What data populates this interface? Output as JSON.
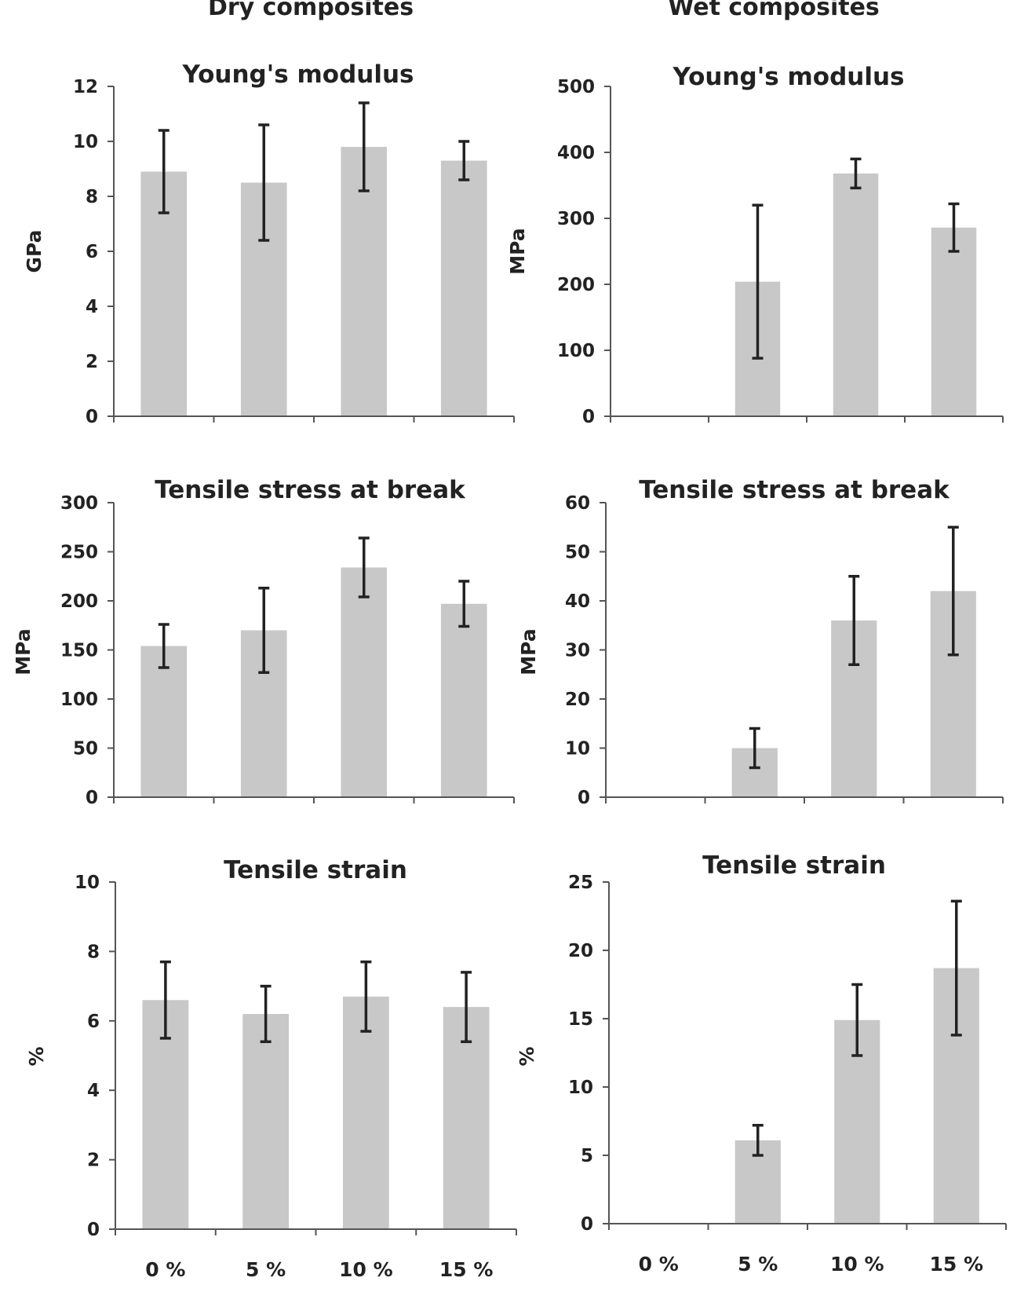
{
  "columns": {
    "dry_title": "Dry composites",
    "wet_title": "Wet composites"
  },
  "chart_data": [
    {
      "type": "bar",
      "title": "Young's modulus",
      "ylabel": "GPa",
      "categories": [
        "0 %",
        "5 %",
        "10 %",
        "15 %"
      ],
      "values": [
        8.9,
        8.5,
        9.8,
        9.3
      ],
      "errors": [
        1.5,
        2.1,
        1.6,
        0.7
      ],
      "ylim": [
        0,
        12
      ],
      "yticks": [
        0,
        2,
        4,
        6,
        8,
        10,
        12
      ],
      "show_category_labels": false,
      "bar_color": "#c8c8c8",
      "error_color": "#222222"
    },
    {
      "type": "bar",
      "title": "Young's modulus",
      "ylabel": "MPa",
      "categories": [
        "0 %",
        "5 %",
        "10 %",
        "15 %"
      ],
      "values": [
        0,
        204,
        368,
        286
      ],
      "errors": [
        0,
        116,
        22,
        36
      ],
      "ylim": [
        0,
        500
      ],
      "yticks": [
        0,
        100,
        200,
        300,
        400,
        500
      ],
      "show_category_labels": false,
      "bar_color": "#c8c8c8",
      "error_color": "#222222"
    },
    {
      "type": "bar",
      "title": "Tensile stress at break",
      "ylabel": "MPa",
      "categories": [
        "0 %",
        "5 %",
        "10 %",
        "15 %"
      ],
      "values": [
        154,
        170,
        234,
        197
      ],
      "errors": [
        22,
        43,
        30,
        23
      ],
      "ylim": [
        0,
        300
      ],
      "yticks": [
        0,
        50,
        100,
        150,
        200,
        250,
        300
      ],
      "show_category_labels": false,
      "bar_color": "#c8c8c8",
      "error_color": "#222222"
    },
    {
      "type": "bar",
      "title": "Tensile stress at break",
      "ylabel": "MPa",
      "categories": [
        "0 %",
        "5 %",
        "10 %",
        "15 %"
      ],
      "values": [
        0,
        10,
        36,
        42
      ],
      "errors": [
        0,
        4,
        9,
        13
      ],
      "ylim": [
        0,
        60
      ],
      "yticks": [
        0,
        10,
        20,
        30,
        40,
        50,
        60
      ],
      "show_category_labels": false,
      "bar_color": "#c8c8c8",
      "error_color": "#222222"
    },
    {
      "type": "bar",
      "title": "Tensile strain",
      "ylabel": "%",
      "categories": [
        "0 %",
        "5 %",
        "10 %",
        "15 %"
      ],
      "values": [
        6.6,
        6.2,
        6.7,
        6.4
      ],
      "errors": [
        1.1,
        0.8,
        1.0,
        1.0
      ],
      "ylim": [
        0,
        10
      ],
      "yticks": [
        0,
        2,
        4,
        6,
        8,
        10
      ],
      "show_category_labels": true,
      "bar_color": "#c8c8c8",
      "error_color": "#222222"
    },
    {
      "type": "bar",
      "title": "Tensile strain",
      "ylabel": "%",
      "categories": [
        "0 %",
        "5 %",
        "10 %",
        "15 %"
      ],
      "values": [
        0,
        6.1,
        14.9,
        18.7
      ],
      "errors": [
        0,
        1.1,
        2.6,
        4.9
      ],
      "ylim": [
        0,
        25
      ],
      "yticks": [
        0,
        5,
        10,
        15,
        20,
        25
      ],
      "show_category_labels": true,
      "bar_color": "#c8c8c8",
      "error_color": "#222222"
    }
  ]
}
